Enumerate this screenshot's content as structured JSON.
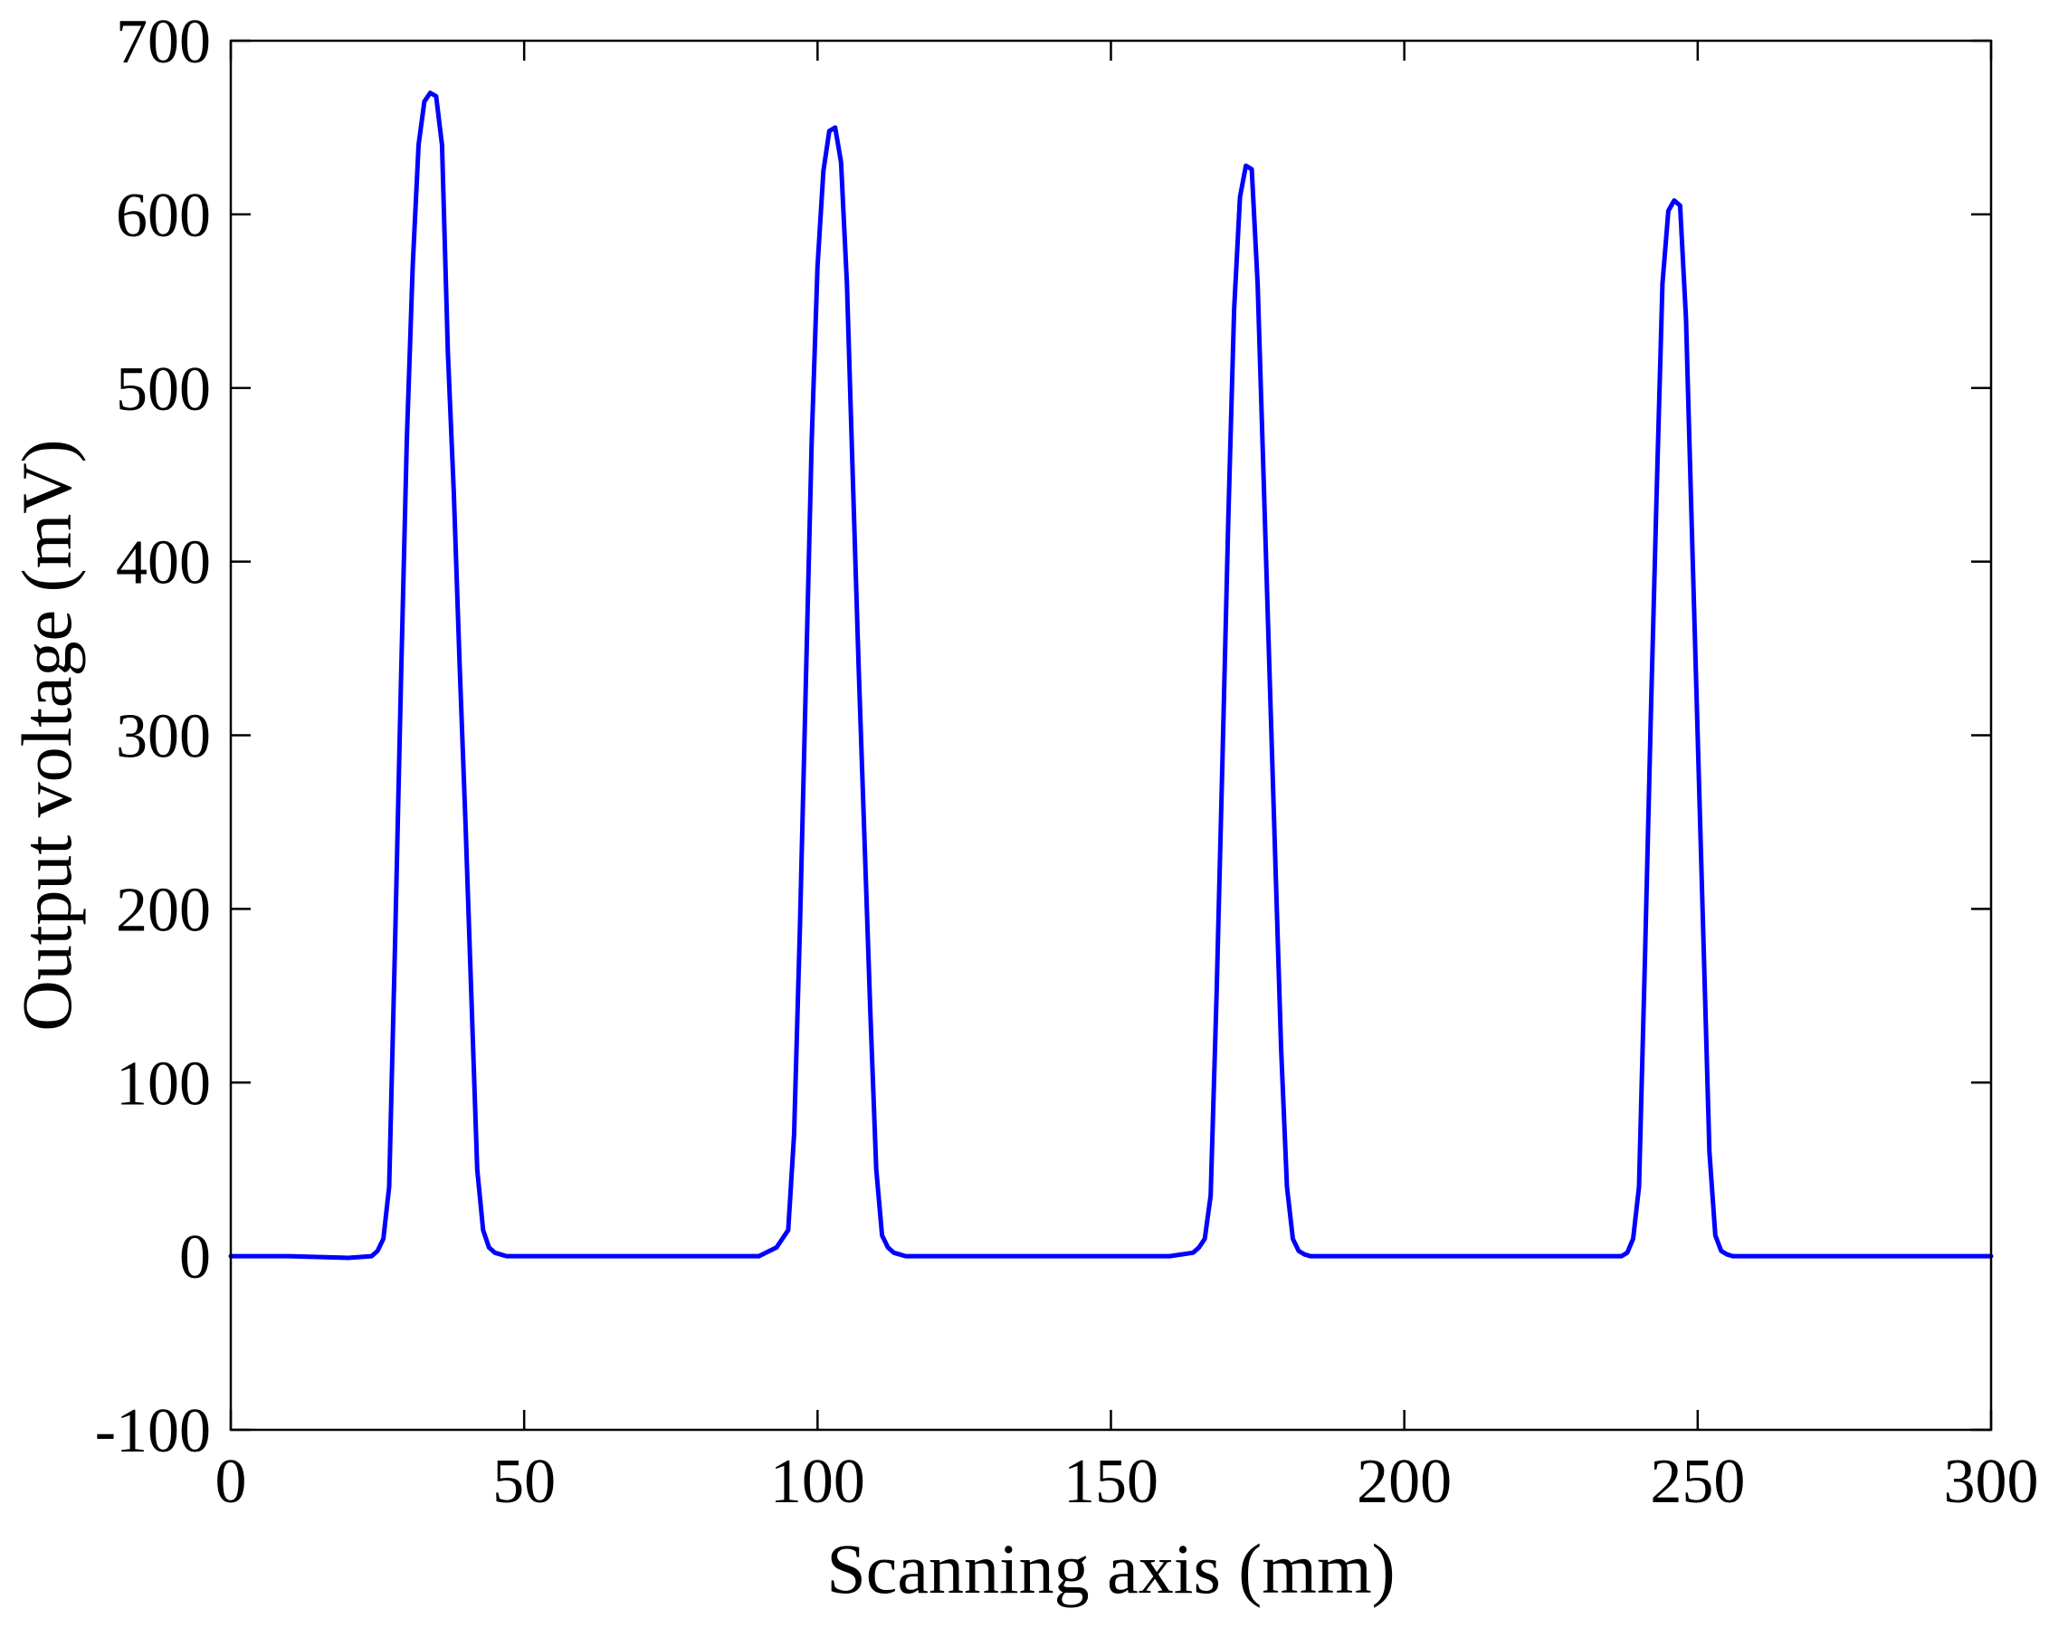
{
  "chart_data": {
    "type": "line",
    "title": "",
    "xlabel": "Scanning axis (mm)",
    "ylabel": "Output voltage (mV)",
    "xlim": [
      0,
      300
    ],
    "ylim": [
      -100,
      700
    ],
    "xticks": [
      0,
      50,
      100,
      150,
      200,
      250,
      300
    ],
    "yticks": [
      -100,
      0,
      100,
      200,
      300,
      400,
      500,
      600,
      700
    ],
    "xtick_labels": [
      "0",
      "50",
      "100",
      "150",
      "200",
      "250",
      "300"
    ],
    "ytick_labels": [
      "-100",
      "0",
      "100",
      "200",
      "300",
      "400",
      "500",
      "600",
      "700"
    ],
    "grid": false,
    "line_color": "#0000ff",
    "series": [
      {
        "x": [
          0,
          10,
          20,
          24,
          25,
          26,
          27,
          28,
          29,
          30,
          31,
          32,
          33,
          34,
          35,
          36,
          37,
          38,
          39,
          40,
          41,
          42,
          43,
          44,
          45,
          46,
          47,
          48,
          50,
          60,
          70,
          80,
          90,
          93,
          95,
          96,
          97,
          98,
          99,
          100,
          101,
          102,
          103,
          104,
          105,
          106,
          107,
          108,
          109,
          110,
          111,
          112,
          113,
          114,
          115,
          116,
          117,
          118,
          120,
          130,
          140,
          150,
          160,
          164,
          165,
          166,
          167,
          168,
          169,
          170,
          171,
          172,
          173,
          174,
          175,
          176,
          177,
          178,
          179,
          180,
          181,
          182,
          183,
          184,
          185,
          186,
          187,
          188,
          190,
          200,
          210,
          220,
          230,
          234,
          235,
          236,
          237,
          238,
          239,
          240,
          241,
          242,
          243,
          244,
          245,
          246,
          247,
          248,
          249,
          250,
          251,
          252,
          253,
          254,
          255,
          256,
          257,
          258,
          260,
          270,
          280,
          290,
          300
        ],
        "y": [
          0,
          0,
          -1,
          0,
          3,
          10,
          40,
          180,
          330,
          470,
          570,
          640,
          665,
          670,
          668,
          640,
          520,
          440,
          340,
          250,
          150,
          50,
          15,
          5,
          2,
          1,
          0,
          0,
          0,
          0,
          0,
          0,
          0,
          5,
          15,
          70,
          190,
          330,
          470,
          570,
          625,
          648,
          650,
          630,
          560,
          450,
          340,
          240,
          140,
          50,
          12,
          5,
          2,
          1,
          0,
          0,
          0,
          0,
          0,
          0,
          0,
          0,
          0,
          2,
          5,
          10,
          35,
          150,
          285,
          425,
          545,
          610,
          628,
          626,
          560,
          450,
          340,
          230,
          120,
          40,
          10,
          3,
          1,
          0,
          0,
          0,
          0,
          0,
          0,
          0,
          0,
          0,
          0,
          0,
          0,
          0,
          0,
          2,
          10,
          40,
          170,
          310,
          440,
          560,
          602,
          608,
          605,
          540,
          420,
          300,
          180,
          60,
          12,
          3,
          1,
          0,
          0,
          0,
          0,
          0,
          0,
          0,
          0
        ]
      }
    ]
  }
}
